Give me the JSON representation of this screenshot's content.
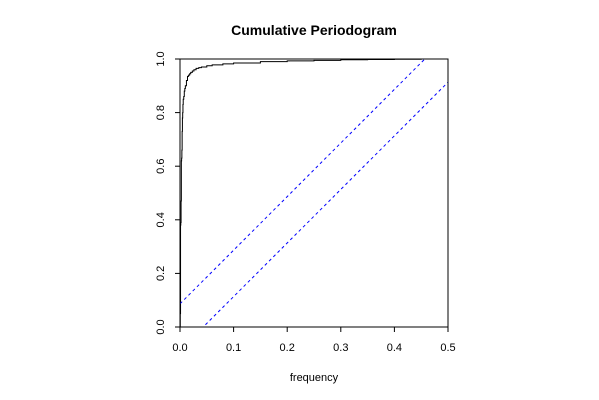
{
  "chart_data": {
    "type": "line",
    "title": "Cumulative Periodogram",
    "xlabel": "frequency",
    "ylabel": "",
    "xlim": [
      0,
      0.5
    ],
    "ylim": [
      0,
      1
    ],
    "x_ticks": [
      0.0,
      0.1,
      0.2,
      0.3,
      0.4,
      0.5
    ],
    "x_tick_labels": [
      "0.0",
      "0.1",
      "0.2",
      "0.3",
      "0.4",
      "0.5"
    ],
    "y_ticks": [
      0.0,
      0.2,
      0.4,
      0.6,
      0.8,
      1.0
    ],
    "y_tick_labels": [
      "0.0",
      "0.2",
      "0.4",
      "0.6",
      "0.8",
      "1.0"
    ],
    "grid": false,
    "series": [
      {
        "style": "step",
        "color": "#000000",
        "x": [
          0.0,
          0.0005,
          0.001,
          0.0015,
          0.002,
          0.0025,
          0.003,
          0.0035,
          0.004,
          0.0045,
          0.005,
          0.0055,
          0.006,
          0.007,
          0.008,
          0.009,
          0.01,
          0.012,
          0.014,
          0.016,
          0.018,
          0.02,
          0.023,
          0.026,
          0.03,
          0.035,
          0.04,
          0.05,
          0.06,
          0.08,
          0.1,
          0.15,
          0.2,
          0.25,
          0.3,
          0.35,
          0.4,
          0.45,
          0.5
        ],
        "y": [
          0.0,
          0.05,
          0.38,
          0.39,
          0.47,
          0.62,
          0.63,
          0.66,
          0.73,
          0.78,
          0.8,
          0.83,
          0.85,
          0.86,
          0.88,
          0.89,
          0.9,
          0.92,
          0.935,
          0.94,
          0.945,
          0.95,
          0.955,
          0.96,
          0.965,
          0.968,
          0.97,
          0.975,
          0.978,
          0.982,
          0.985,
          0.99,
          0.993,
          0.995,
          0.997,
          0.998,
          0.999,
          1.0,
          1.0
        ]
      },
      {
        "style": "dashed",
        "color": "#0000ff",
        "x": [
          0.0,
          0.5
        ],
        "y": [
          0.0866,
          1.0866
        ]
      },
      {
        "style": "dashed",
        "color": "#0000ff",
        "x": [
          0.0,
          0.5
        ],
        "y": [
          -0.0866,
          0.9134
        ]
      }
    ]
  }
}
